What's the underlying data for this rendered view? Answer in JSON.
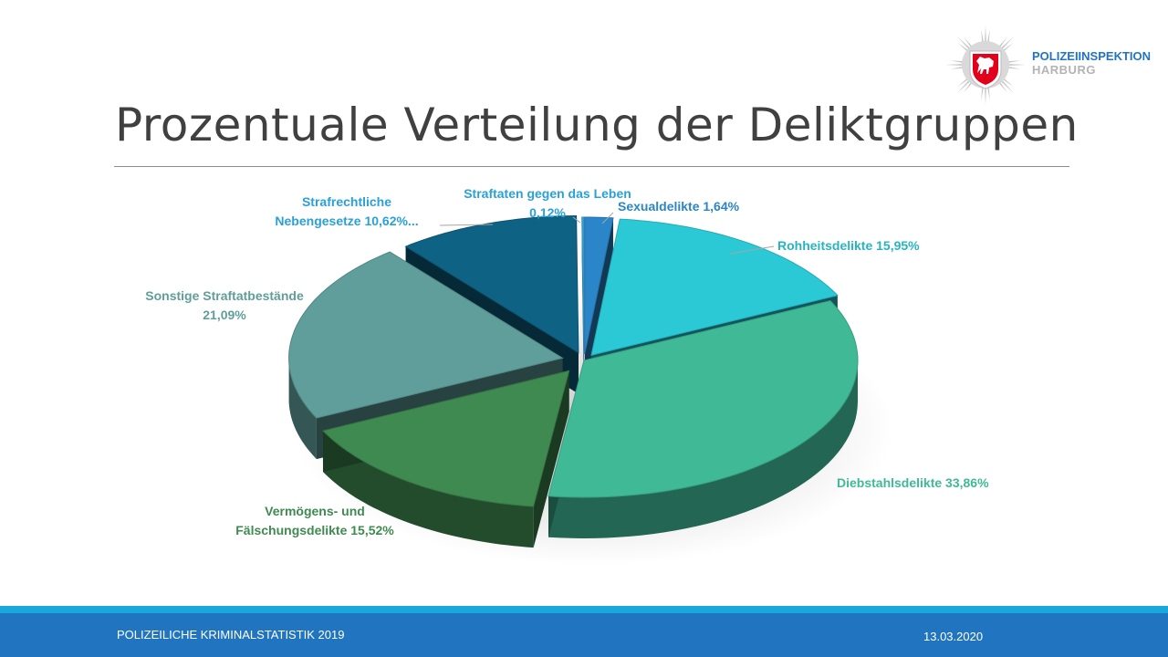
{
  "header": {
    "title": "Prozentuale Verteilung der Deliktgruppen",
    "logo_line1": "POLIZEIINSPEKTION",
    "logo_line2": "HARBURG"
  },
  "footer": {
    "left": "POLIZEILICHE KRIMINALSTATISTIK 2019",
    "right": "13.03.2020"
  },
  "colors": {
    "footer_bar": "#2074c0",
    "footer_stripe": "#1aa8dc",
    "logo_red": "#e3001b",
    "title": "#404040"
  },
  "chart_data": {
    "type": "pie",
    "style": "3d-exploded",
    "legend": "none",
    "slices": [
      {
        "name": "Sexualdelikte",
        "value": 1.64,
        "label_lines": [
          "Sexualdelikte 1,64%"
        ],
        "color": "#2a86c8"
      },
      {
        "name": "Rohheitsdelikte",
        "value": 15.95,
        "label_lines": [
          "Rohheitsdelikte 15,95%"
        ],
        "color": "#2bc8d6"
      },
      {
        "name": "Diebstahlsdelikte",
        "value": 33.86,
        "label_lines": [
          "Diebstahlsdelikte 33,86%"
        ],
        "color": "#3fb996"
      },
      {
        "name": "Vermögens- und Fälschungsdelikte",
        "value": 15.52,
        "label_lines": [
          "Vermögens- und",
          "Fälschungsdelikte 15,52%"
        ],
        "color": "#3f8a50"
      },
      {
        "name": "Sonstige Straftatbestände",
        "value": 21.09,
        "label_lines": [
          "Sonstige Straftatbestände",
          "21,09%"
        ],
        "color": "#5f9e9a"
      },
      {
        "name": "Strafrechtliche Nebengesetze",
        "value": 10.62,
        "label_lines": [
          "Strafrechtliche",
          "Nebengesetze 10,62%..."
        ],
        "color": "#0e6283"
      },
      {
        "name": "Straftaten gegen das Leben",
        "value": 0.12,
        "label_lines": [
          "Straftaten gegen das Leben",
          "0,12%"
        ],
        "color": "#3aa7da"
      }
    ]
  }
}
